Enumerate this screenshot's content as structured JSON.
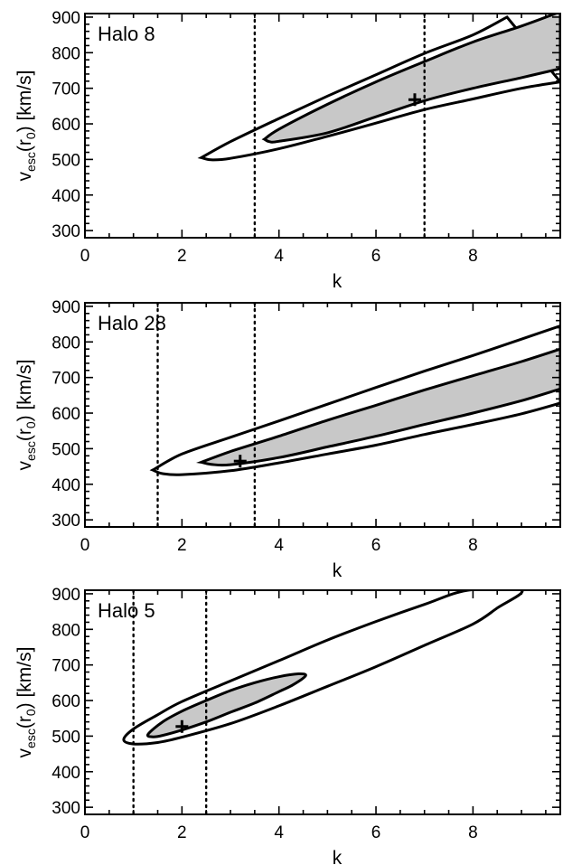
{
  "chart_data": [
    {
      "type": "contour",
      "title": "Halo 8",
      "xlabel": "k",
      "ylabel_main": "v",
      "ylabel_sub": "esc",
      "ylabel_rest": "(r",
      "ylabel_sub2": "0",
      "ylabel_tail": ") [km/s]",
      "xlim": [
        0,
        9.8
      ],
      "ylim": [
        280,
        910
      ],
      "xticks": [
        0,
        2,
        4,
        6,
        8
      ],
      "yticks": [
        300,
        400,
        500,
        600,
        700,
        800,
        900
      ],
      "grid": false,
      "dotted_lines_x": [
        3.5,
        7.0
      ],
      "best_fit": {
        "k": 6.8,
        "vesc": 668
      },
      "outer_contour": {
        "upper": [
          [
            2.4,
            505
          ],
          [
            3,
            550
          ],
          [
            4,
            615
          ],
          [
            5,
            678
          ],
          [
            6,
            738
          ],
          [
            7,
            798
          ],
          [
            8,
            850
          ],
          [
            8.7,
            900
          ]
        ],
        "lower": [
          [
            2.4,
            505
          ],
          [
            2.6,
            499
          ],
          [
            3,
            503
          ],
          [
            4,
            530
          ],
          [
            5,
            565
          ],
          [
            6,
            602
          ],
          [
            7,
            640
          ],
          [
            8,
            670
          ],
          [
            9,
            700
          ],
          [
            9.8,
            718
          ]
        ],
        "right_x": 9.8
      },
      "inner_contour": {
        "upper": [
          [
            3.7,
            557
          ],
          [
            4,
            585
          ],
          [
            5,
            655
          ],
          [
            6,
            718
          ],
          [
            7,
            775
          ],
          [
            8,
            830
          ],
          [
            9,
            875
          ],
          [
            9.8,
            915
          ]
        ],
        "lower": [
          [
            3.7,
            557
          ],
          [
            3.8,
            550
          ],
          [
            4,
            551
          ],
          [
            5,
            575
          ],
          [
            6,
            620
          ],
          [
            7,
            665
          ],
          [
            8,
            700
          ],
          [
            9,
            730
          ],
          [
            9.8,
            755
          ]
        ],
        "right_x": 9.8
      }
    },
    {
      "type": "contour",
      "title": "Halo 28",
      "xlabel": "k",
      "ylabel_main": "v",
      "ylabel_sub": "esc",
      "ylabel_rest": "(r",
      "ylabel_sub2": "0",
      "ylabel_tail": ") [km/s]",
      "xlim": [
        0,
        9.8
      ],
      "ylim": [
        280,
        910
      ],
      "xticks": [
        0,
        2,
        4,
        6,
        8
      ],
      "yticks": [
        300,
        400,
        500,
        600,
        700,
        800,
        900
      ],
      "grid": false,
      "dotted_lines_x": [
        1.5,
        3.5
      ],
      "best_fit": {
        "k": 3.2,
        "vesc": 465
      },
      "outer_contour": {
        "upper": [
          [
            1.4,
            440
          ],
          [
            2,
            485
          ],
          [
            3,
            532
          ],
          [
            4,
            578
          ],
          [
            5,
            625
          ],
          [
            6,
            672
          ],
          [
            7,
            718
          ],
          [
            8,
            762
          ],
          [
            9,
            808
          ],
          [
            9.8,
            845
          ]
        ],
        "lower": [
          [
            1.4,
            440
          ],
          [
            1.6,
            430
          ],
          [
            2,
            427
          ],
          [
            3,
            438
          ],
          [
            4,
            460
          ],
          [
            5,
            485
          ],
          [
            6,
            510
          ],
          [
            7,
            540
          ],
          [
            8,
            568
          ],
          [
            9,
            598
          ],
          [
            9.8,
            628
          ]
        ],
        "right_x": 9.8
      },
      "inner_contour": {
        "upper": [
          [
            2.4,
            462
          ],
          [
            3,
            492
          ],
          [
            4,
            535
          ],
          [
            5,
            580
          ],
          [
            6,
            622
          ],
          [
            7,
            665
          ],
          [
            8,
            705
          ],
          [
            9,
            745
          ],
          [
            9.8,
            780
          ]
        ],
        "lower": [
          [
            2.4,
            462
          ],
          [
            2.6,
            456
          ],
          [
            3,
            455
          ],
          [
            4,
            475
          ],
          [
            5,
            505
          ],
          [
            6,
            535
          ],
          [
            7,
            568
          ],
          [
            8,
            600
          ],
          [
            9,
            635
          ],
          [
            9.8,
            668
          ]
        ],
        "right_x": 9.8
      }
    },
    {
      "type": "contour",
      "title": "Halo 5",
      "xlabel": "k",
      "ylabel_main": "v",
      "ylabel_sub": "esc",
      "ylabel_rest": "(r",
      "ylabel_sub2": "0",
      "ylabel_tail": ") [km/s]",
      "xlim": [
        0,
        9.8
      ],
      "ylim": [
        280,
        910
      ],
      "xticks": [
        0,
        2,
        4,
        6,
        8
      ],
      "yticks": [
        300,
        400,
        500,
        600,
        700,
        800,
        900
      ],
      "grid": false,
      "dotted_lines_x": [
        1.0,
        2.5
      ],
      "best_fit": {
        "k": 2.0,
        "vesc": 527
      },
      "outer_contour": {
        "closed": [
          [
            0.8,
            490
          ],
          [
            1,
            520
          ],
          [
            1.5,
            560
          ],
          [
            2,
            597
          ],
          [
            3,
            655
          ],
          [
            4,
            712
          ],
          [
            5,
            770
          ],
          [
            6,
            822
          ],
          [
            7,
            870
          ],
          [
            7.9,
            910
          ],
          [
            9,
            910
          ],
          [
            8.5,
            860
          ],
          [
            8,
            815
          ],
          [
            7,
            755
          ],
          [
            6,
            695
          ],
          [
            5,
            640
          ],
          [
            4,
            585
          ],
          [
            3,
            535
          ],
          [
            2,
            497
          ],
          [
            1.5,
            482
          ],
          [
            1.0,
            478
          ]
        ]
      },
      "inner_contour": {
        "closed": [
          [
            1.3,
            505
          ],
          [
            1.6,
            540
          ],
          [
            2,
            570
          ],
          [
            2.5,
            600
          ],
          [
            3,
            628
          ],
          [
            3.5,
            650
          ],
          [
            4,
            667
          ],
          [
            4.4,
            675
          ],
          [
            4.55,
            670
          ],
          [
            4.3,
            645
          ],
          [
            4,
            625
          ],
          [
            3.5,
            593
          ],
          [
            3,
            567
          ],
          [
            2.5,
            540
          ],
          [
            2,
            517
          ],
          [
            1.6,
            502
          ],
          [
            1.4,
            498
          ]
        ]
      }
    }
  ]
}
